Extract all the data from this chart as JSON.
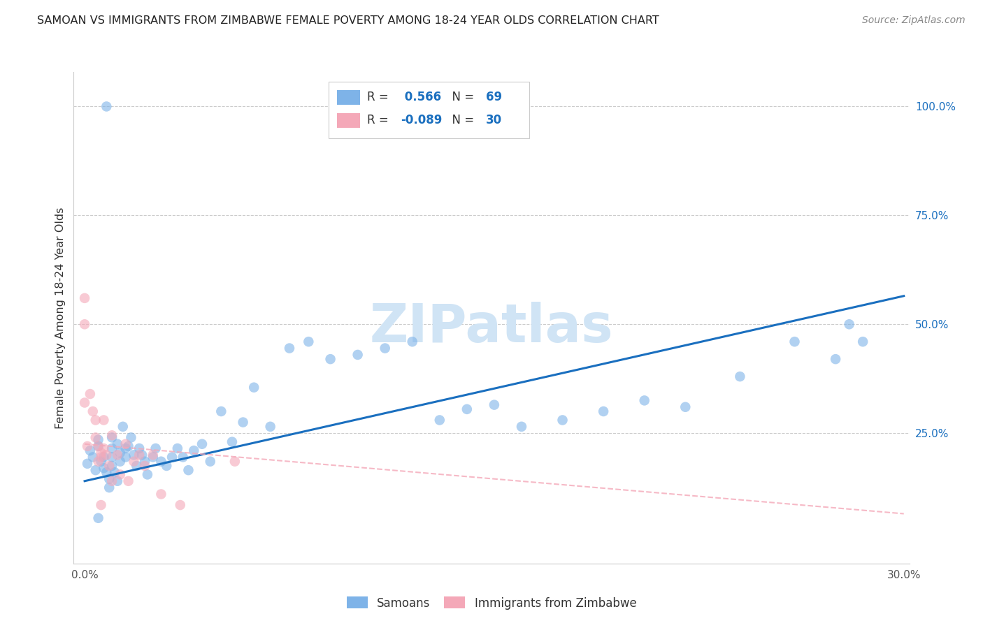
{
  "title": "SAMOAN VS IMMIGRANTS FROM ZIMBABWE FEMALE POVERTY AMONG 18-24 YEAR OLDS CORRELATION CHART",
  "source": "Source: ZipAtlas.com",
  "ylabel_label": "Female Poverty Among 18-24 Year Olds",
  "right_yticks": [
    "100.0%",
    "75.0%",
    "50.0%",
    "25.0%"
  ],
  "right_ytick_vals": [
    1.0,
    0.75,
    0.5,
    0.25
  ],
  "xlim": [
    0.0,
    0.3
  ],
  "ylim": [
    -0.05,
    1.08
  ],
  "samoan_color": "#7EB3E8",
  "zimbabwe_color": "#F4A8B8",
  "line_blue": "#1A6FBF",
  "line_pink": "#E8A0B0",
  "samoan_R": "0.566",
  "samoan_N": "69",
  "zimbabwe_R": "-0.089",
  "zimbabwe_N": "30",
  "R_label_color": "#333333",
  "RN_value_color": "#1A6FBF",
  "watermark": "ZIPatlas",
  "watermark_color": "#D0E4F5",
  "bottom_legend_labels": [
    "Samoans",
    "Immigrants from Zimbabwe"
  ],
  "samoan_x": [
    0.001,
    0.002,
    0.003,
    0.004,
    0.005,
    0.005,
    0.006,
    0.007,
    0.007,
    0.008,
    0.009,
    0.009,
    0.01,
    0.01,
    0.01,
    0.01,
    0.011,
    0.012,
    0.012,
    0.013,
    0.013,
    0.014,
    0.015,
    0.015,
    0.016,
    0.017,
    0.018,
    0.019,
    0.02,
    0.021,
    0.022,
    0.023,
    0.025,
    0.026,
    0.028,
    0.03,
    0.032,
    0.034,
    0.036,
    0.038,
    0.04,
    0.043,
    0.046,
    0.05,
    0.054,
    0.058,
    0.062,
    0.068,
    0.075,
    0.082,
    0.09,
    0.1,
    0.11,
    0.12,
    0.13,
    0.14,
    0.15,
    0.16,
    0.175,
    0.19,
    0.205,
    0.22,
    0.24,
    0.26,
    0.275,
    0.285,
    0.005,
    0.008,
    0.28
  ],
  "samoan_y": [
    0.18,
    0.21,
    0.195,
    0.165,
    0.22,
    0.235,
    0.185,
    0.17,
    0.195,
    0.16,
    0.145,
    0.125,
    0.24,
    0.215,
    0.195,
    0.175,
    0.16,
    0.14,
    0.225,
    0.205,
    0.185,
    0.265,
    0.215,
    0.195,
    0.22,
    0.24,
    0.2,
    0.175,
    0.215,
    0.2,
    0.185,
    0.155,
    0.195,
    0.215,
    0.185,
    0.175,
    0.195,
    0.215,
    0.195,
    0.165,
    0.21,
    0.225,
    0.185,
    0.3,
    0.23,
    0.275,
    0.355,
    0.265,
    0.445,
    0.46,
    0.42,
    0.43,
    0.445,
    0.46,
    0.28,
    0.305,
    0.315,
    0.265,
    0.28,
    0.3,
    0.325,
    0.31,
    0.38,
    0.46,
    0.42,
    0.46,
    0.055,
    1.0,
    0.5
  ],
  "zimbabwe_x": [
    0.0,
    0.0,
    0.0,
    0.001,
    0.002,
    0.003,
    0.004,
    0.004,
    0.005,
    0.005,
    0.006,
    0.006,
    0.006,
    0.007,
    0.007,
    0.008,
    0.009,
    0.01,
    0.01,
    0.012,
    0.013,
    0.015,
    0.016,
    0.018,
    0.02,
    0.022,
    0.025,
    0.028,
    0.035,
    0.055
  ],
  "zimbabwe_y": [
    0.56,
    0.5,
    0.32,
    0.22,
    0.34,
    0.3,
    0.28,
    0.24,
    0.22,
    0.185,
    0.205,
    0.195,
    0.085,
    0.28,
    0.215,
    0.2,
    0.175,
    0.14,
    0.245,
    0.2,
    0.155,
    0.225,
    0.14,
    0.185,
    0.2,
    0.175,
    0.2,
    0.11,
    0.085,
    0.185
  ],
  "samoan_line_x": [
    0.0,
    0.3
  ],
  "samoan_line_y": [
    0.14,
    0.565
  ],
  "zimbabwe_line_x": [
    0.0,
    0.3
  ],
  "zimbabwe_line_y": [
    0.225,
    0.065
  ]
}
